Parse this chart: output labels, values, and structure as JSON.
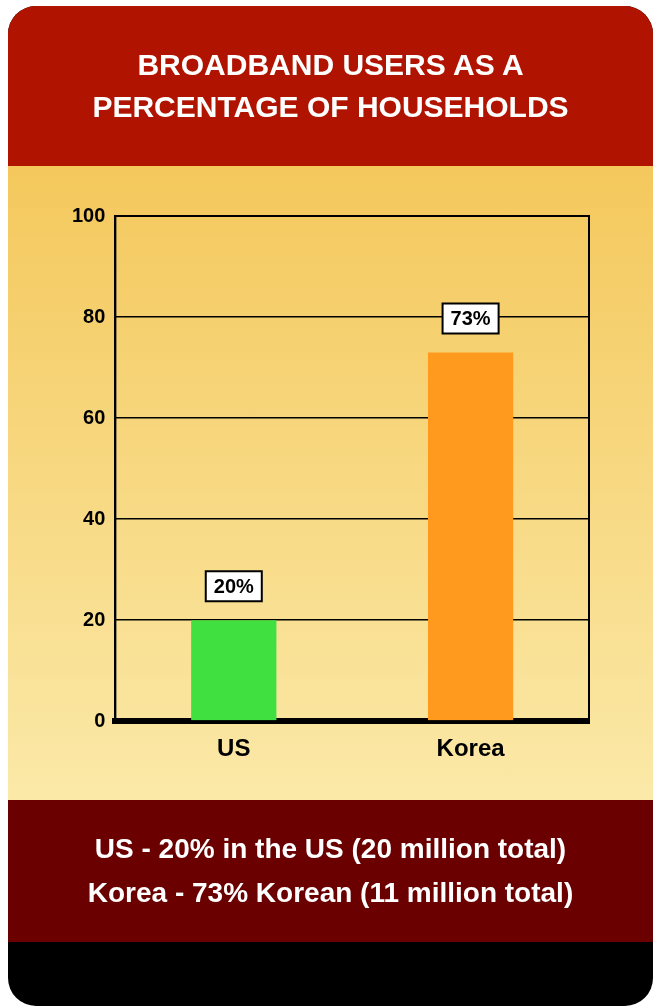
{
  "chart_data": {
    "type": "bar",
    "title": "BROADBAND USERS AS A PERCENTAGE OF HOUSEHOLDS",
    "categories": [
      "US",
      "Korea"
    ],
    "values": [
      20,
      73
    ],
    "colors": [
      "#3fe03f",
      "#ff9a1f"
    ],
    "value_labels": [
      "20%",
      "73%"
    ],
    "ylim": [
      0,
      100
    ],
    "yticks": [
      0,
      20,
      40,
      60,
      80,
      100
    ],
    "grid": "y",
    "legend": false,
    "annotations": [
      "US - 20% in the US (20 million total)",
      "Korea - 73% Korean (11 million total)"
    ]
  }
}
